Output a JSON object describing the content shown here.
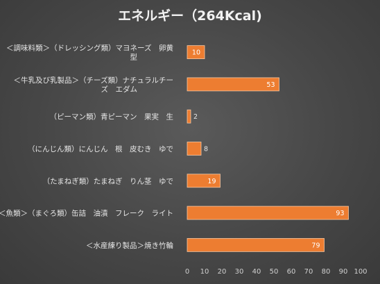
{
  "chart_data": {
    "type": "bar",
    "orientation": "horizontal",
    "title": "エネルギー（264Kcal)",
    "categories": [
      [
        "＜調味料類＞（ドレッシング類）マヨネーズ　卵黄",
        "型"
      ],
      [
        "＜牛乳及び乳製品＞（チーズ類）ナチュラルチー",
        "ズ　エダム"
      ],
      [
        "（ピーマン類）青ピーマン　果実　生"
      ],
      [
        "（にんじん類）にんじん　根　皮むき　ゆで"
      ],
      [
        "（たまねぎ類）たまねぎ　りん茎　ゆで"
      ],
      [
        "＜魚類＞（まぐろ類）缶詰　油漬　フレーク　ライト"
      ],
      [
        "＜水産練り製品＞焼き竹輪"
      ]
    ],
    "values": [
      10,
      53,
      2,
      8,
      19,
      93,
      79
    ],
    "xlim": [
      0,
      100
    ],
    "xticks": [
      "0",
      "10",
      "20",
      "30",
      "40",
      "50",
      "60",
      "70",
      "80",
      "90",
      "100"
    ],
    "grid": false,
    "legend": "none",
    "bar_color": "#ED7D31",
    "bar_edge_color": "#f8c9a4"
  }
}
